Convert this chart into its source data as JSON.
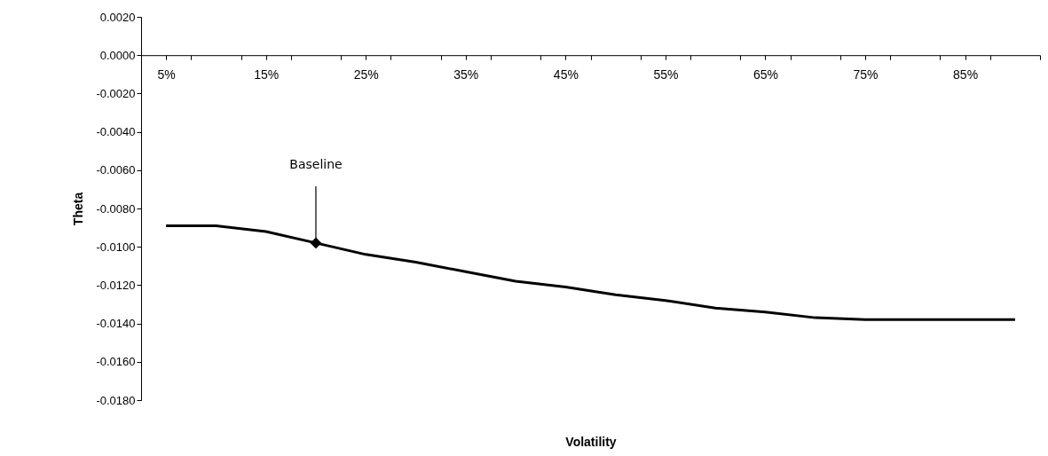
{
  "chart_data": {
    "type": "line",
    "xlabel": "Volatility",
    "ylabel": "Theta",
    "x": [
      5,
      10,
      15,
      20,
      25,
      30,
      35,
      40,
      45,
      50,
      55,
      60,
      65,
      70,
      75,
      80,
      85,
      90
    ],
    "series": [
      {
        "color": "#000000",
        "values": [
          -0.0089,
          -0.0089,
          -0.0092,
          -0.0098,
          -0.0104,
          -0.0108,
          -0.0113,
          -0.0118,
          -0.0121,
          -0.0125,
          -0.0128,
          -0.0132,
          -0.0134,
          -0.0137,
          -0.0138,
          -0.0138,
          -0.0138,
          -0.0138
        ]
      },
      {
        "type": "scatter",
        "marker": "diamond",
        "color": "#000000",
        "x": [
          20
        ],
        "values": [
          -0.0098
        ]
      }
    ],
    "xlim": [
      2.5,
      92.5
    ],
    "xticks": [
      {
        "value": 2.5,
        "label": null
      },
      {
        "value": 5,
        "label": "5%"
      },
      {
        "value": 7.5,
        "label": null
      },
      {
        "value": 12.5,
        "label": null
      },
      {
        "value": 15,
        "label": "15%"
      },
      {
        "value": 17.5,
        "label": null
      },
      {
        "value": 22.5,
        "label": null
      },
      {
        "value": 25,
        "label": "25%"
      },
      {
        "value": 27.5,
        "label": null
      },
      {
        "value": 32.5,
        "label": null
      },
      {
        "value": 35,
        "label": "35%"
      },
      {
        "value": 37.5,
        "label": null
      },
      {
        "value": 42.5,
        "label": null
      },
      {
        "value": 45,
        "label": "45%"
      },
      {
        "value": 47.5,
        "label": null
      },
      {
        "value": 52.5,
        "label": null
      },
      {
        "value": 55,
        "label": "55%"
      },
      {
        "value": 57.5,
        "label": null
      },
      {
        "value": 62.5,
        "label": null
      },
      {
        "value": 65,
        "label": "65%"
      },
      {
        "value": 67.5,
        "label": null
      },
      {
        "value": 72.5,
        "label": null
      },
      {
        "value": 75,
        "label": "75%"
      },
      {
        "value": 77.5,
        "label": null
      },
      {
        "value": 82.5,
        "label": null
      },
      {
        "value": 85,
        "label": "85%"
      },
      {
        "value": 87.5,
        "label": null
      },
      {
        "value": 92.5,
        "label": null
      }
    ],
    "ylim": [
      -0.018,
      0.002
    ],
    "yticks": [
      {
        "value": 0.002,
        "label": "0.0020"
      },
      {
        "value": 0,
        "label": "0.0000"
      },
      {
        "value": -0.002,
        "label": "-0.0020"
      },
      {
        "value": -0.004,
        "label": "-0.0040"
      },
      {
        "value": -0.006,
        "label": "-0.0060"
      },
      {
        "value": -0.008,
        "label": "-0.0080"
      },
      {
        "value": -0.01,
        "label": "-0.0100"
      },
      {
        "value": -0.012,
        "label": "-0.0120"
      },
      {
        "value": -0.014,
        "label": "-0.0140"
      },
      {
        "value": -0.016,
        "label": "-0.0160"
      },
      {
        "value": -0.018,
        "label": "-0.0180"
      }
    ],
    "annotations": [
      {
        "text": "Baseline",
        "x": 20,
        "y": -0.0098
      }
    ]
  }
}
